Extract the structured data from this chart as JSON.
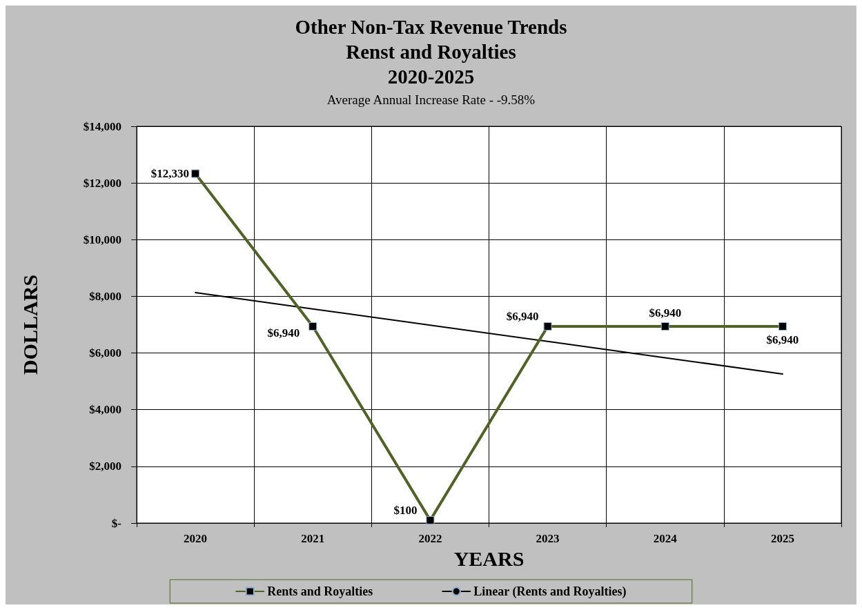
{
  "chart_data": {
    "type": "line",
    "title": "Other Non-Tax Revenue Trends\nRenst and Royalties\n2020-2025",
    "subtitle": "Average Annual Increase Rate - -9.58%",
    "xlabel": "YEARS",
    "ylabel": "DOLLARS",
    "categories": [
      "2020",
      "2021",
      "2022",
      "2023",
      "2024",
      "2025"
    ],
    "series": [
      {
        "name": "Rents and Royalties",
        "color": "#4f6228",
        "values": [
          12330,
          6940,
          100,
          6940,
          6940,
          6940
        ],
        "value_labels": [
          "$12,330",
          "$6,940",
          "$100",
          "$6,940",
          "$6,940",
          "$6,940"
        ],
        "marker": "square"
      },
      {
        "name": "Linear (Rents and Royalties)",
        "type": "line",
        "color": "#000000",
        "values": [
          8130,
          7556,
          6982,
          6408,
          5834,
          5260
        ],
        "marker": "none"
      }
    ],
    "ylim": [
      0,
      14000
    ],
    "yticks": [
      {
        "value": 0,
        "label": "$-"
      },
      {
        "value": 2000,
        "label": "$2,000"
      },
      {
        "value": 4000,
        "label": "$4,000"
      },
      {
        "value": 6000,
        "label": "$6,000"
      },
      {
        "value": 8000,
        "label": "$8,000"
      },
      {
        "value": 10000,
        "label": "$10,000"
      },
      {
        "value": 12000,
        "label": "$12,000"
      },
      {
        "value": 14000,
        "label": "$14,000"
      }
    ],
    "grid": true,
    "legend": "bottom"
  }
}
